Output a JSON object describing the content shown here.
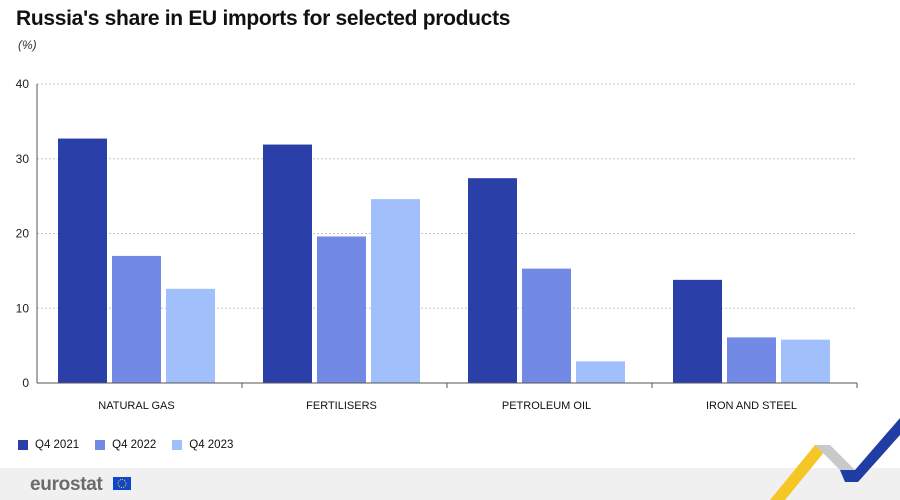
{
  "header": {
    "title": "Russia's share in EU imports for selected products",
    "unit": "(%)"
  },
  "chart_data": {
    "type": "bar",
    "title": "Russia's share in EU imports for selected products",
    "ylabel": "(%)",
    "xlabel": "",
    "ylim": [
      0,
      40
    ],
    "yticks": [
      0,
      10,
      20,
      30,
      40
    ],
    "grid": true,
    "legend_position": "bottom-left",
    "categories": [
      "NATURAL GAS",
      "FERTILISERS",
      "PETROLEUM OIL",
      "IRON AND STEEL"
    ],
    "series": [
      {
        "name": "Q4 2021",
        "color": "#2a40a8",
        "values": [
          32.7,
          31.9,
          27.4,
          13.8
        ]
      },
      {
        "name": "Q4 2022",
        "color": "#7289e6",
        "values": [
          17.0,
          19.6,
          15.3,
          6.1
        ]
      },
      {
        "name": "Q4 2023",
        "color": "#a1c0fb",
        "values": [
          12.6,
          24.6,
          2.9,
          5.8
        ]
      }
    ]
  },
  "footer": {
    "logo": "eurostat",
    "flag_icon": "eu-flag-icon",
    "decoration_colors": [
      "#f4c726",
      "#1f3da3"
    ]
  }
}
